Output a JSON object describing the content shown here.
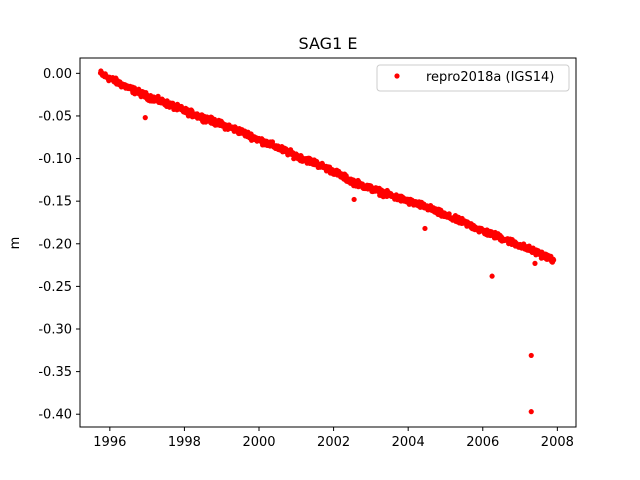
{
  "chart_data": {
    "type": "scatter",
    "title": "SAG1 E",
    "xlabel": "",
    "ylabel": "m",
    "xlim": [
      1995.2,
      2008.5
    ],
    "ylim": [
      -0.415,
      0.018
    ],
    "xticks": [
      1996,
      1998,
      2000,
      2002,
      2004,
      2006,
      2008
    ],
    "yticks": [
      "0.00",
      "-0.05",
      "-0.10",
      "-0.15",
      "-0.20",
      "-0.25",
      "-0.30",
      "-0.35",
      "-0.40"
    ],
    "legend_position": "top-right",
    "grid": false,
    "series": [
      {
        "name": "repro2018a (IGS14)",
        "color": "#ff0000",
        "marker": "circle",
        "trend": [
          [
            1995.75,
            0.0
          ],
          [
            1996.0,
            -0.006
          ],
          [
            1996.5,
            -0.017
          ],
          [
            1997.0,
            -0.027
          ],
          [
            1997.5,
            -0.035
          ],
          [
            1998.0,
            -0.044
          ],
          [
            1998.5,
            -0.052
          ],
          [
            1999.0,
            -0.06
          ],
          [
            1999.5,
            -0.068
          ],
          [
            2000.0,
            -0.078
          ],
          [
            2000.5,
            -0.087
          ],
          [
            2001.0,
            -0.097
          ],
          [
            2001.5,
            -0.105
          ],
          [
            2002.0,
            -0.115
          ],
          [
            2002.5,
            -0.127
          ],
          [
            2003.0,
            -0.135
          ],
          [
            2003.5,
            -0.143
          ],
          [
            2004.0,
            -0.15
          ],
          [
            2004.5,
            -0.157
          ],
          [
            2005.0,
            -0.167
          ],
          [
            2005.5,
            -0.175
          ],
          [
            2006.0,
            -0.185
          ],
          [
            2006.5,
            -0.193
          ],
          [
            2007.0,
            -0.202
          ],
          [
            2007.5,
            -0.211
          ],
          [
            2007.9,
            -0.219
          ]
        ],
        "outliers": [
          [
            1996.95,
            -0.052
          ],
          [
            2002.55,
            -0.148
          ],
          [
            2004.45,
            -0.182
          ],
          [
            2006.25,
            -0.238
          ],
          [
            2007.4,
            -0.223
          ],
          [
            2007.3,
            -0.331
          ],
          [
            2007.3,
            -0.397
          ]
        ]
      }
    ]
  }
}
